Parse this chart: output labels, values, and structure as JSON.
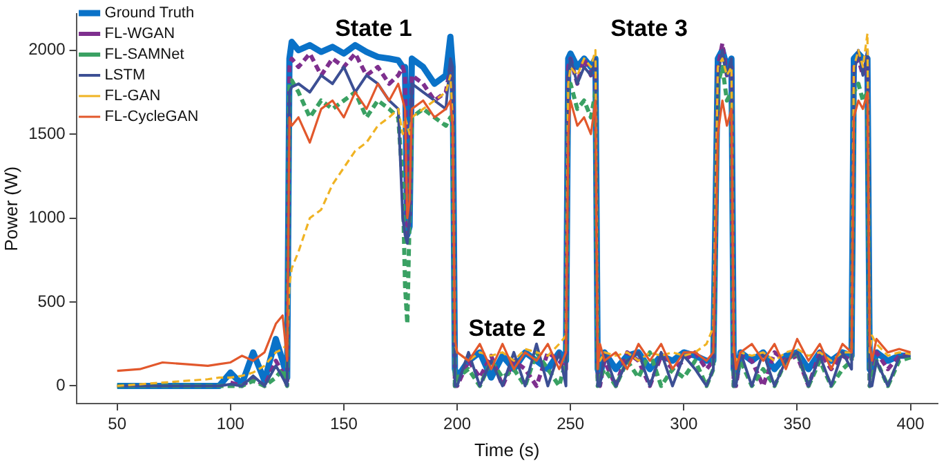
{
  "chart_data": {
    "type": "line",
    "xlabel": "Time (s)",
    "ylabel": "Power (W)",
    "x": [
      50,
      60,
      70,
      80,
      90,
      95,
      100,
      105,
      110,
      115,
      120,
      123,
      125,
      126,
      127,
      130,
      135,
      140,
      145,
      150,
      155,
      160,
      165,
      170,
      174,
      176,
      177,
      178,
      179,
      180,
      185,
      190,
      195,
      197,
      198,
      199,
      200,
      205,
      210,
      215,
      220,
      225,
      230,
      235,
      240,
      245,
      248,
      249,
      250,
      253,
      256,
      259,
      261,
      262,
      263,
      265,
      270,
      275,
      280,
      285,
      290,
      295,
      300,
      305,
      310,
      313,
      315,
      317,
      319,
      321,
      322,
      323,
      325,
      330,
      335,
      340,
      345,
      350,
      355,
      360,
      365,
      370,
      374,
      375,
      377,
      379,
      381,
      382,
      383,
      385,
      390,
      395,
      400
    ],
    "xlim": [
      32,
      412
    ],
    "xticks": [
      50,
      100,
      150,
      200,
      250,
      300,
      350,
      400
    ],
    "ylim": [
      -105,
      2215
    ],
    "yticks": [
      0,
      500,
      1000,
      1500,
      2000
    ],
    "grid": false,
    "legend": "top left",
    "marker": "none",
    "annotations": [
      "State 1",
      "State 2",
      "State 3"
    ],
    "series": [
      {
        "name": "Ground Truth",
        "color": "#0a72c8",
        "line_style": "solid",
        "values": [
          0,
          0,
          0,
          0,
          0,
          0,
          80,
          10,
          200,
          30,
          280,
          150,
          50,
          1950,
          2050,
          2000,
          2030,
          1990,
          2020,
          1980,
          2030,
          1990,
          1960,
          1950,
          1940,
          1900,
          1900,
          900,
          950,
          1950,
          1900,
          1800,
          1850,
          2080,
          1900,
          100,
          50,
          150,
          200,
          50,
          180,
          100,
          200,
          150,
          100,
          200,
          150,
          1950,
          1980,
          1900,
          1950,
          1900,
          1950,
          100,
          50,
          200,
          100,
          180,
          200,
          100,
          180,
          150,
          200,
          180,
          150,
          150,
          1950,
          2000,
          1900,
          1950,
          100,
          50,
          200,
          150,
          200,
          100,
          180,
          200,
          100,
          200,
          150,
          200,
          180,
          1950,
          1980,
          1950,
          1950,
          100,
          80,
          200,
          150,
          180,
          180
        ]
      },
      {
        "name": "FL-WGAN",
        "color": "#7e2f8e",
        "line_style": "dashed",
        "values": [
          null,
          null,
          null,
          null,
          null,
          null,
          20,
          0,
          50,
          0,
          150,
          80,
          0,
          1900,
          1950,
          1900,
          1980,
          1850,
          1950,
          1900,
          1980,
          1850,
          1900,
          1800,
          1850,
          1900,
          1850,
          900,
          1000,
          1850,
          1800,
          1700,
          1750,
          1900,
          1800,
          0,
          0,
          150,
          50,
          180,
          0,
          150,
          100,
          0,
          200,
          150,
          100,
          1900,
          1950,
          1800,
          1950,
          1850,
          1900,
          50,
          0,
          150,
          0,
          200,
          150,
          0,
          180,
          100,
          150,
          200,
          100,
          150,
          1900,
          2040,
          1850,
          1900,
          0,
          0,
          180,
          150,
          0,
          200,
          150,
          180,
          0,
          200,
          100,
          180,
          150,
          1900,
          1950,
          1850,
          1950,
          0,
          50,
          200,
          100,
          180,
          180
        ]
      },
      {
        "name": "FL-SAMNet",
        "color": "#3aa163",
        "line_style": "dashed",
        "values": [
          0,
          0,
          0,
          0,
          0,
          0,
          0,
          0,
          30,
          0,
          50,
          100,
          0,
          1800,
          1820,
          1750,
          1600,
          1700,
          1650,
          1700,
          1750,
          1600,
          1700,
          1650,
          1600,
          1200,
          600,
          370,
          1000,
          1600,
          1650,
          1600,
          1550,
          1600,
          1550,
          0,
          50,
          100,
          0,
          150,
          50,
          100,
          0,
          200,
          100,
          0,
          150,
          1750,
          1800,
          1650,
          1700,
          1600,
          1750,
          0,
          50,
          100,
          0,
          150,
          50,
          200,
          0,
          100,
          50,
          150,
          0,
          100,
          1800,
          1900,
          1700,
          1750,
          0,
          50,
          150,
          0,
          100,
          0,
          150,
          200,
          0,
          150,
          0,
          100,
          150,
          1750,
          1800,
          1700,
          1750,
          0,
          50,
          150,
          0,
          150,
          170
        ]
      },
      {
        "name": "LSTM",
        "color": "#3c4f94",
        "line_style": "solid",
        "values": [
          0,
          0,
          0,
          0,
          0,
          0,
          10,
          0,
          60,
          0,
          120,
          50,
          0,
          1750,
          1780,
          1800,
          1750,
          1850,
          1800,
          1900,
          1750,
          1850,
          1800,
          1700,
          1650,
          1000,
          900,
          850,
          1000,
          1800,
          1750,
          1700,
          1650,
          1950,
          1900,
          0,
          0,
          200,
          0,
          150,
          0,
          200,
          0,
          250,
          0,
          200,
          0,
          1850,
          1950,
          1800,
          1900,
          1850,
          1950,
          0,
          0,
          200,
          0,
          150,
          200,
          0,
          200,
          0,
          180,
          100,
          0,
          100,
          1850,
          2000,
          1850,
          1950,
          0,
          0,
          200,
          0,
          200,
          0,
          150,
          200,
          0,
          180,
          0,
          200,
          100,
          1850,
          2000,
          1850,
          2000,
          0,
          0,
          150,
          0,
          170,
          180
        ]
      },
      {
        "name": "FL-GAN",
        "color": "#f0b323",
        "line_style": "dashed",
        "values": [
          0,
          10,
          20,
          30,
          40,
          50,
          50,
          60,
          80,
          120,
          200,
          220,
          250,
          600,
          700,
          800,
          1000,
          1050,
          1200,
          1300,
          1400,
          1450,
          1550,
          1600,
          1650,
          1500,
          1600,
          1550,
          1500,
          1600,
          1650,
          1700,
          1750,
          1850,
          1600,
          250,
          200,
          150,
          200,
          180,
          200,
          150,
          220,
          200,
          180,
          250,
          300,
          1800,
          1900,
          1850,
          1950,
          1900,
          2000,
          200,
          150,
          200,
          180,
          200,
          150,
          200,
          180,
          200,
          180,
          200,
          250,
          350,
          1900,
          1950,
          1850,
          1900,
          200,
          150,
          200,
          180,
          200,
          150,
          200,
          220,
          180,
          200,
          150,
          200,
          200,
          1900,
          2000,
          1900,
          2100,
          200,
          300,
          250,
          180,
          200,
          190
        ]
      },
      {
        "name": "FL-CycleGAN",
        "color": "#e2582c",
        "line_style": "solid",
        "values": [
          90,
          100,
          140,
          130,
          120,
          130,
          140,
          180,
          150,
          200,
          370,
          420,
          150,
          1600,
          1550,
          1600,
          1450,
          1650,
          1700,
          1600,
          1750,
          1650,
          1800,
          1700,
          1800,
          1700,
          1650,
          1000,
          1100,
          1650,
          1700,
          1600,
          1650,
          1700,
          1550,
          280,
          200,
          150,
          250,
          100,
          250,
          100,
          200,
          150,
          250,
          100,
          200,
          1500,
          1700,
          1550,
          1600,
          1500,
          1700,
          100,
          250,
          150,
          200,
          100,
          250,
          150,
          250,
          100,
          200,
          200,
          150,
          200,
          1500,
          1700,
          1550,
          1650,
          250,
          100,
          200,
          250,
          150,
          250,
          100,
          280,
          150,
          250,
          100,
          250,
          200,
          1600,
          1700,
          1650,
          1750,
          250,
          150,
          280,
          200,
          220,
          200
        ]
      }
    ]
  }
}
